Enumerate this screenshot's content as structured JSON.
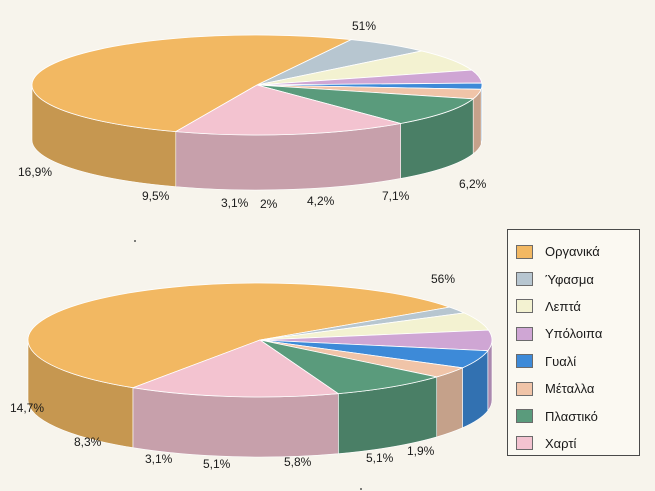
{
  "chart_data": [
    {
      "type": "pie",
      "legend_position": "right",
      "slices": [
        {
          "category": "Οργανικά",
          "value": 51,
          "label": "51%",
          "color": "#f2b862"
        },
        {
          "category": "Ύφασμα",
          "value": 6.2,
          "label": "6,2%",
          "color": "#b7c6d0"
        },
        {
          "category": "Λεπτά",
          "value": 7.1,
          "label": "7,1%",
          "color": "#f3f2d1"
        },
        {
          "category": "Υπόλοιπα",
          "value": 4.2,
          "label": "4,2%",
          "color": "#cfa6d4"
        },
        {
          "category": "Γυαλί",
          "value": 2,
          "label": "2%",
          "color": "#3d8ad8"
        },
        {
          "category": "Μέταλλα",
          "value": 3.1,
          "label": "3,1%",
          "color": "#f0c4a8"
        },
        {
          "category": "Πλαστικό",
          "value": 9.5,
          "label": "9,5%",
          "color": "#5a9b7c"
        },
        {
          "category": "Χαρτί",
          "value": 16.9,
          "label": "16,9%",
          "color": "#f3c3d0"
        }
      ]
    },
    {
      "type": "pie",
      "legend_position": "right",
      "slices": [
        {
          "category": "Οργανικά",
          "value": 56,
          "label": "56%",
          "color": "#f2b862"
        },
        {
          "category": "Ύφασμα",
          "value": 1.9,
          "label": "1,9%",
          "color": "#b7c6d0"
        },
        {
          "category": "Λεπτά",
          "value": 5.1,
          "label": "5,1%",
          "color": "#f3f2d1"
        },
        {
          "category": "Υπόλοιπα",
          "value": 5.8,
          "label": "5,8%",
          "color": "#cfa6d4"
        },
        {
          "category": "Γυαλί",
          "value": 5.1,
          "label": "5,1%",
          "color": "#3d8ad8"
        },
        {
          "category": "Μέταλλα",
          "value": 3.1,
          "label": "3,1%",
          "color": "#f0c4a8"
        },
        {
          "category": "Πλαστικό",
          "value": 8.3,
          "label": "8,3%",
          "color": "#5a9b7c"
        },
        {
          "category": "Χαρτί",
          "value": 14.7,
          "label": "14,7%",
          "color": "#f3c3d0"
        }
      ]
    }
  ],
  "legend": {
    "items": [
      {
        "label": "Οργανικά",
        "color": "#f2b862"
      },
      {
        "label": "Ύφασμα",
        "color": "#b7c6d0"
      },
      {
        "label": "Λεπτά",
        "color": "#f3f2d1"
      },
      {
        "label": "Υπόλοιπα",
        "color": "#cfa6d4"
      },
      {
        "label": "Γυαλί",
        "color": "#3d8ad8"
      },
      {
        "label": "Μέταλλα",
        "color": "#f0c4a8"
      },
      {
        "label": "Πλαστικό",
        "color": "#5a9b7c"
      },
      {
        "label": "Χαρτί",
        "color": "#f3c3d0"
      }
    ]
  }
}
